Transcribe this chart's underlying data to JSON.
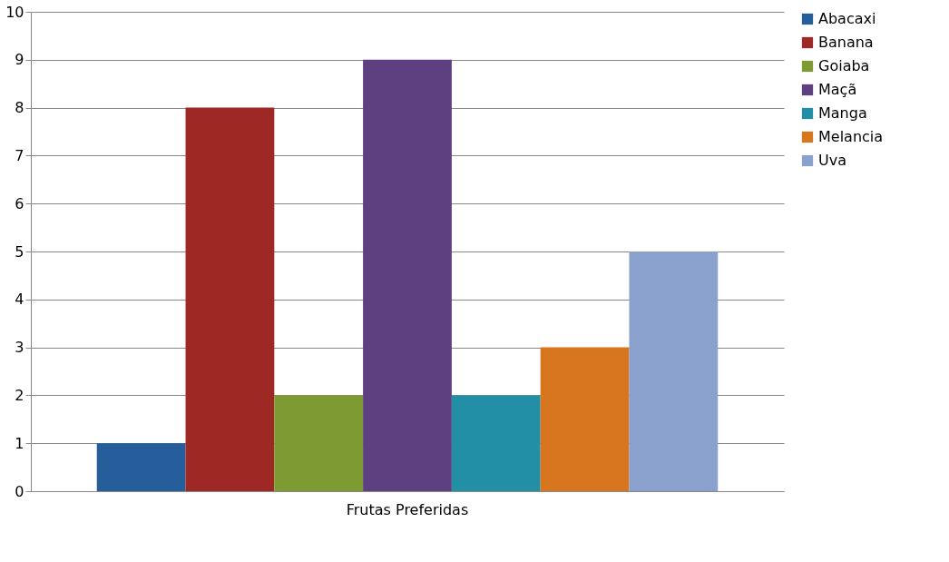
{
  "chart_data": {
    "type": "bar",
    "categories": [
      "Frutas Preferidas"
    ],
    "series": [
      {
        "name": "Abacaxi",
        "color": "#255e9a",
        "values": [
          1
        ]
      },
      {
        "name": "Banana",
        "color": "#9e2824",
        "values": [
          8
        ]
      },
      {
        "name": "Goiaba",
        "color": "#7e9a33",
        "values": [
          2
        ]
      },
      {
        "name": "Maçã",
        "color": "#5e3f80",
        "values": [
          9
        ]
      },
      {
        "name": "Manga",
        "color": "#238fa6",
        "values": [
          2
        ]
      },
      {
        "name": "Melancia",
        "color": "#d8761f",
        "values": [
          3
        ]
      },
      {
        "name": "Uva",
        "color": "#8aa1cd",
        "values": [
          5
        ]
      }
    ],
    "ylim": [
      0,
      10
    ],
    "yticks": [
      0,
      1,
      2,
      3,
      4,
      5,
      6,
      7,
      8,
      9,
      10
    ],
    "grid": "y",
    "legend": "right"
  }
}
